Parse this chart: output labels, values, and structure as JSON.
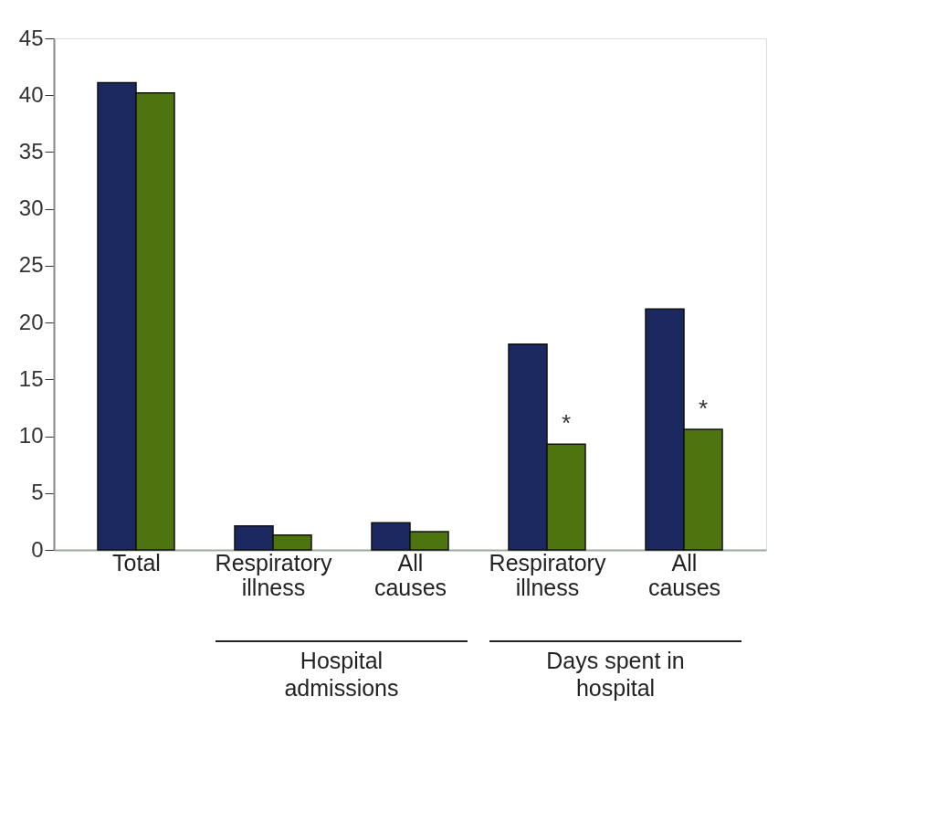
{
  "chart_data": {
    "type": "bar",
    "categories": [
      "Total",
      "Respiratory illness",
      "All causes",
      "Respiratory illness",
      "All causes"
    ],
    "series": [
      {
        "color": "#1c2860",
        "values": [
          41.1,
          2.1,
          2.4,
          18.1,
          21.2
        ]
      },
      {
        "color": "#4e7410",
        "values": [
          40.2,
          1.3,
          1.6,
          9.3,
          10.6
        ],
        "value_labels": [
          null,
          null,
          null,
          "*",
          "*"
        ]
      }
    ],
    "ylim": [
      0,
      45
    ],
    "yticks": [
      0,
      5,
      10,
      15,
      20,
      25,
      30,
      35,
      40,
      45
    ],
    "grid": false,
    "annotations": [
      "Hospital admissions",
      "Days spent in hospital"
    ]
  }
}
